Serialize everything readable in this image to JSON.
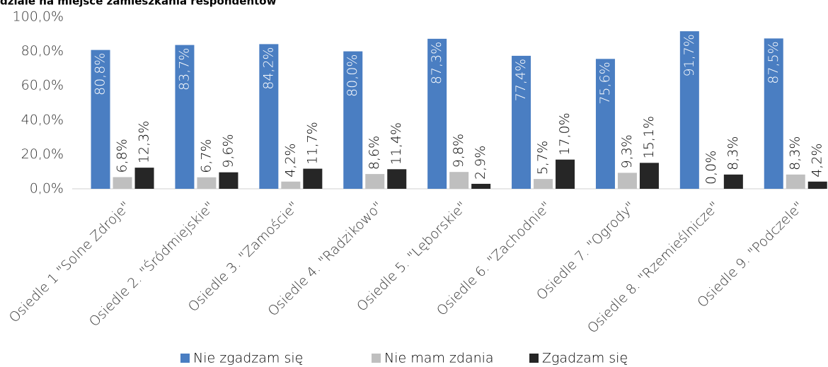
{
  "chart_data": {
    "type": "bar",
    "title": "dziale na miejsce zamieszkania respondentów",
    "categories": [
      "Osiedle 1 \"Solne Zdroje\"",
      "Osiedle 2. \"Śródmiejskie\"",
      "Osiedle 3. \"Zamoście\"",
      "Osiedle 4. \"Radzikowo\"",
      "Osiedle 5. \"Lęborskie\"",
      "Osiedle 6. \"Zachodnie\"",
      "Osiedle 7. \"Ogrody\"",
      "Osiedle 8. \"Rzemieślnicze\"",
      "Osiedle 9. \"Podczele\""
    ],
    "series": [
      {
        "name": "Nie zgadzam się",
        "color": "#4a7ec2",
        "values": [
          80.8,
          83.7,
          84.2,
          80.0,
          87.3,
          77.4,
          75.6,
          91.7,
          87.5
        ],
        "value_labels": [
          "80,8%",
          "83,7%",
          "84,2%",
          "80,0%",
          "87,3%",
          "77,4%",
          "75,6%",
          "91,7%",
          "87,5%"
        ]
      },
      {
        "name": "Nie mam zdania",
        "color": "#bfbfbf",
        "values": [
          6.8,
          6.7,
          4.2,
          8.6,
          9.8,
          5.7,
          9.3,
          0.0,
          8.3
        ],
        "value_labels": [
          "6,8%",
          "6,7%",
          "4,2%",
          "8,6%",
          "9,8%",
          "5,7%",
          "9,3%",
          "0,0%",
          "8,3%"
        ]
      },
      {
        "name": "Zgadzam się",
        "color": "#262626",
        "values": [
          12.3,
          9.6,
          11.7,
          11.4,
          2.9,
          17.0,
          15.1,
          8.3,
          4.2
        ],
        "value_labels": [
          "12,3%",
          "9,6%",
          "11,7%",
          "11,4%",
          "2,9%",
          "17,0%",
          "15,1%",
          "8,3%",
          "4,2%"
        ]
      }
    ],
    "ylim": [
      0,
      100
    ],
    "yticks": [
      {
        "value": 0,
        "label": "0,0%"
      },
      {
        "value": 20,
        "label": "20,0%"
      },
      {
        "value": 40,
        "label": "40,0%"
      },
      {
        "value": 60,
        "label": "60,0%"
      },
      {
        "value": 80,
        "label": "80,0%"
      },
      {
        "value": 100,
        "label": "100,0%"
      }
    ],
    "grid": false
  }
}
